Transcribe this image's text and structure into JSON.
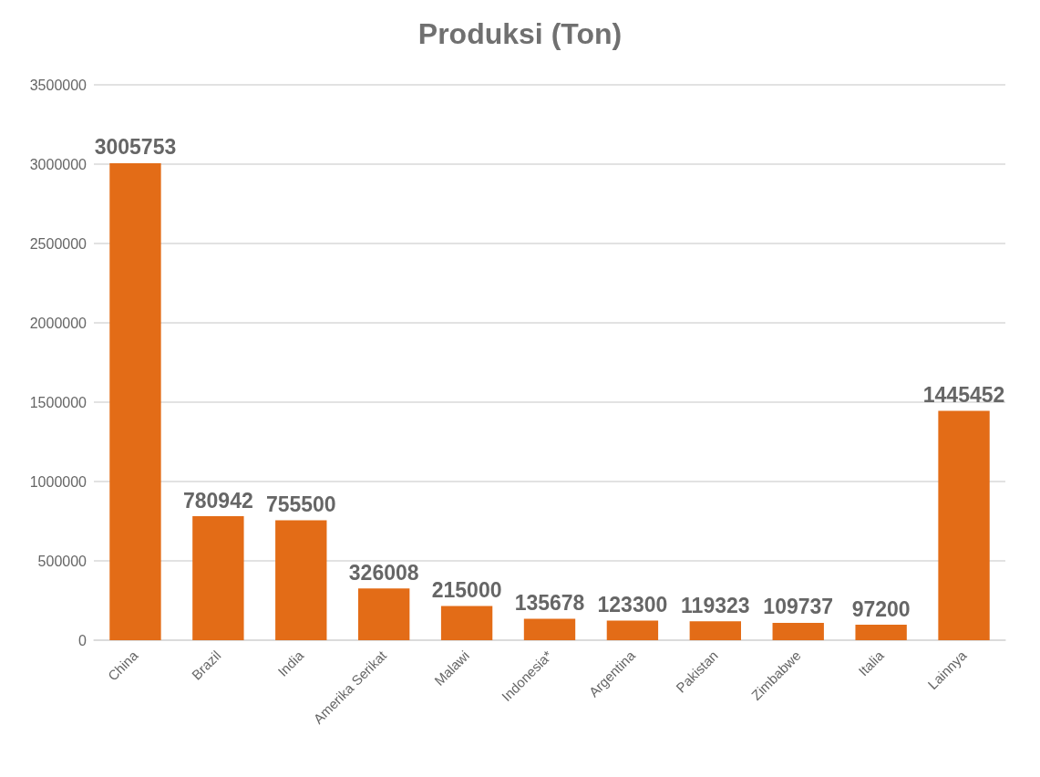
{
  "chart_data": {
    "type": "bar",
    "title": "Produksi (Ton)",
    "categories": [
      "China",
      "Brazil",
      "India",
      "Amerika Serikat",
      "Malawi",
      "Indonesia*",
      "Argentina",
      "Pakistan",
      "Zimbabwe",
      "Italia",
      "Lainnya"
    ],
    "values": [
      3005753,
      780942,
      755500,
      326008,
      215000,
      135678,
      123300,
      119323,
      109737,
      97200,
      1445452
    ],
    "color": "#e36c17",
    "ylim": [
      0,
      3500000
    ],
    "yticks": [
      0,
      500000,
      1000000,
      1500000,
      2000000,
      2500000,
      3000000,
      3500000
    ],
    "grid": "y",
    "data_labels": true
  }
}
